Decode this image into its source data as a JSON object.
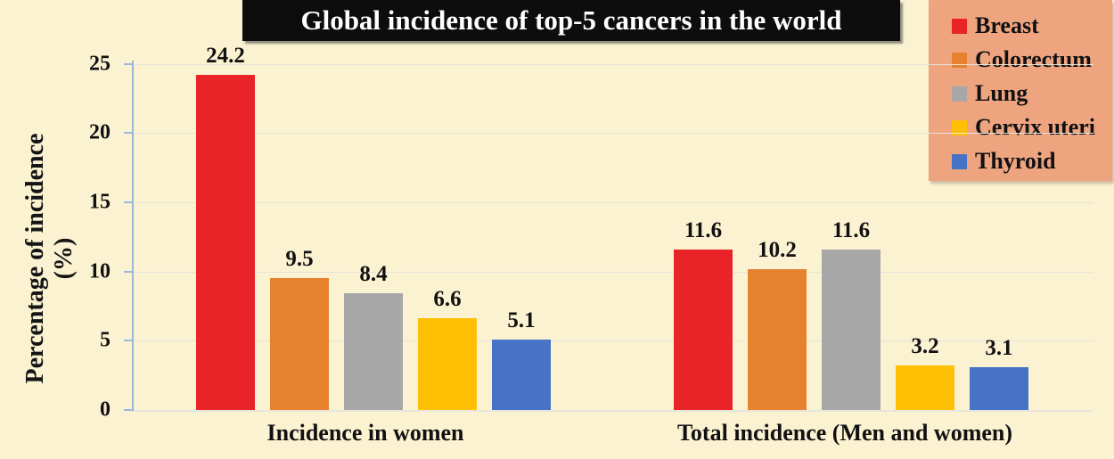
{
  "chart_data": {
    "type": "bar",
    "title": "Global incidence of top-5 cancers in the world",
    "ylabel_line1": "Percentage of incidence",
    "ylabel_line2": "(%)",
    "categories": [
      "Incidence in women",
      "Total incidence (Men and women)"
    ],
    "series": [
      {
        "name": "Breast",
        "color": "#E92428",
        "values": [
          24.2,
          11.6
        ]
      },
      {
        "name": "Colorectum",
        "color": "#E6812E",
        "values": [
          9.5,
          10.2
        ]
      },
      {
        "name": "Lung",
        "color": "#A7A7A7",
        "values": [
          8.4,
          11.6
        ]
      },
      {
        "name": "Cervix uteri",
        "color": "#FFC003",
        "values": [
          6.6,
          3.2
        ]
      },
      {
        "name": "Thyroid",
        "color": "#4673C5",
        "values": [
          5.1,
          3.1
        ]
      }
    ],
    "y_ticks": [
      0,
      5,
      10,
      15,
      20,
      25
    ],
    "ylim": [
      0,
      25
    ],
    "grid": true,
    "legend_position": "top-right"
  },
  "colors": {
    "background": "#FBF2D2",
    "title_background": "#0D0D0D",
    "title_text": "#FFFFFF",
    "legend_background": "#EFA480",
    "axis_line": "#9BB7DB",
    "gridline": "#E4E3D8",
    "label_text": "#111111"
  }
}
